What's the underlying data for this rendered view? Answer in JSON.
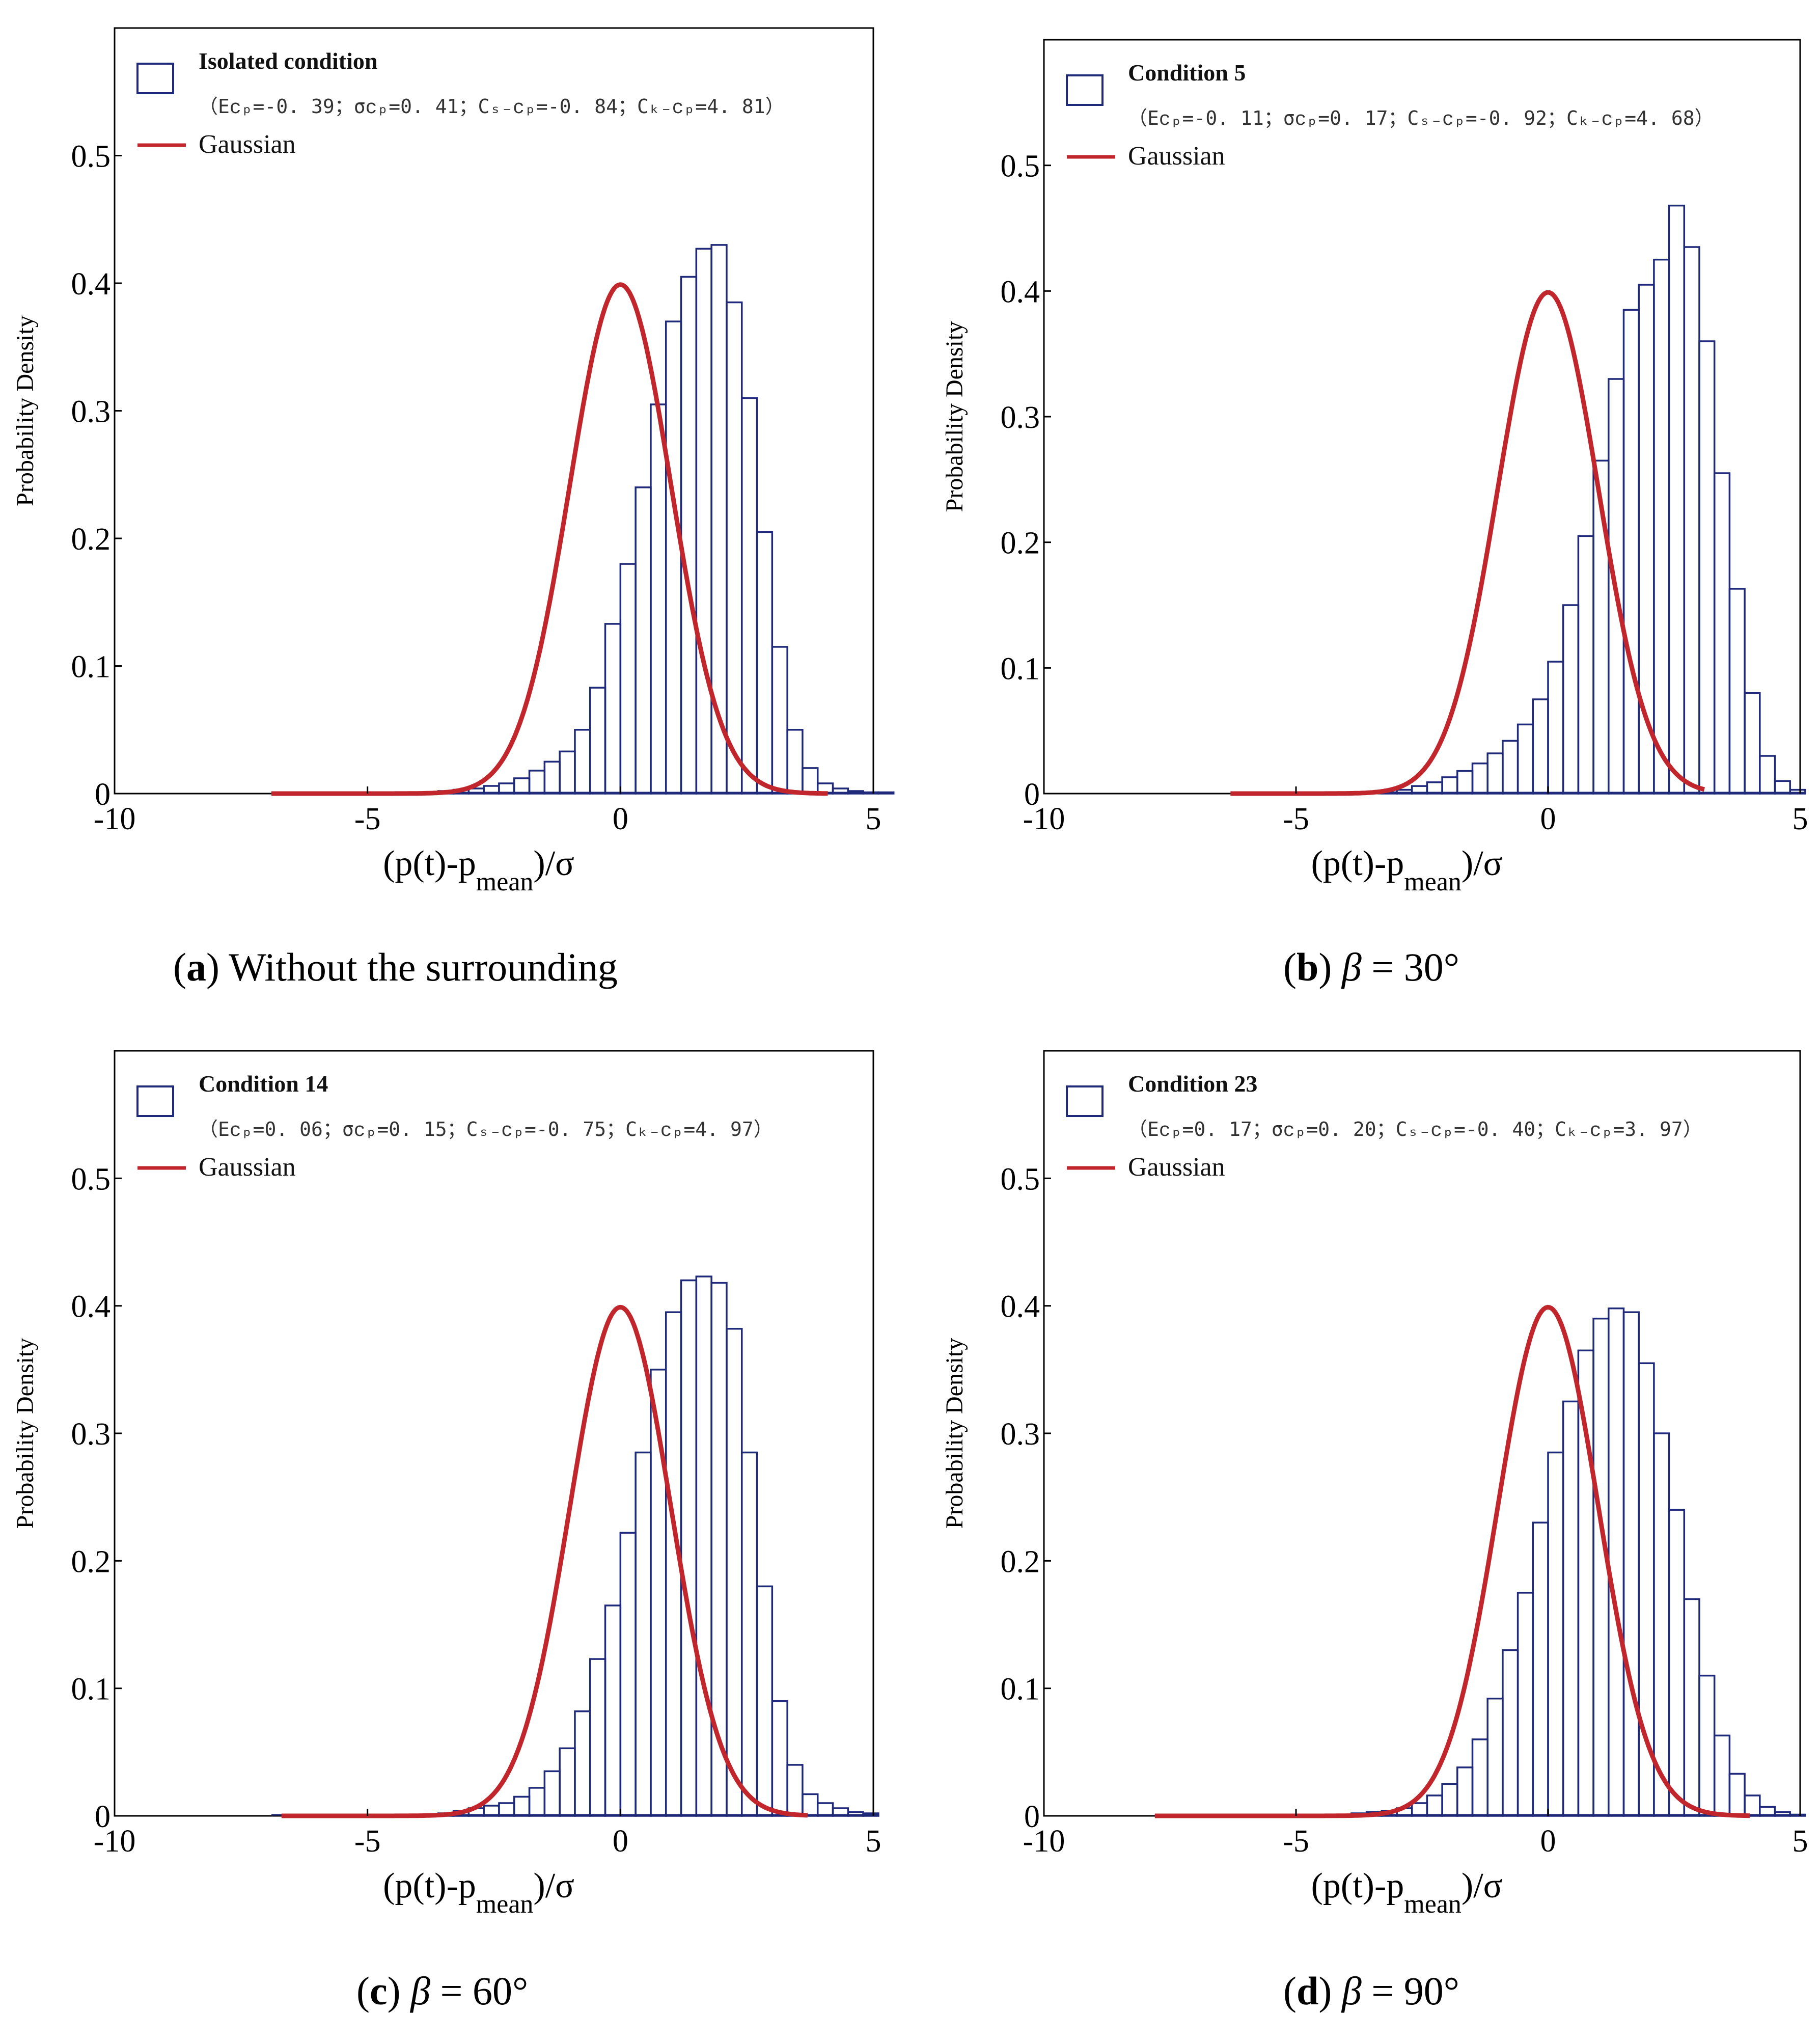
{
  "colors": {
    "bar": "#1f2a7a",
    "gaussian": "#c0262b",
    "axis": "#000000"
  },
  "chart_data": [
    {
      "type": "bar",
      "caption_label": "a",
      "caption_text": "Without the surrounding",
      "legend_title": "Isolated condition",
      "legend_stats": "（Eᴄₚ=-0. 39；σᴄₚ=0. 41；Cₛ₋ᴄₚ=-0. 84；Cₖ₋ᴄₚ=4. 81）",
      "gaussian_label": "Gaussian",
      "ylabel": "Probability Density",
      "xlabel_main": "(p(t)-p",
      "xlabel_sub": "mean",
      "xlabel_end": ")/σ",
      "xlim": [
        -10,
        5
      ],
      "ylim": [
        0,
        0.6
      ],
      "xticks": [
        "-10",
        "-5",
        "0",
        "5"
      ],
      "yticks": [
        "0",
        "0.1",
        "0.2",
        "0.3",
        "0.4",
        "0.5"
      ],
      "bin_width": 0.3,
      "bins_start": -6.9,
      "values": [
        0,
        0,
        0,
        0,
        0,
        0,
        0,
        0,
        0,
        0,
        0.001,
        0.002,
        0.003,
        0.004,
        0.006,
        0.008,
        0.012,
        0.018,
        0.025,
        0.033,
        0.05,
        0.083,
        0.133,
        0.18,
        0.24,
        0.305,
        0.37,
        0.405,
        0.427,
        0.43,
        0.385,
        0.31,
        0.205,
        0.115,
        0.05,
        0.02,
        0.008,
        0.004,
        0.002,
        0.001,
        0.001
      ],
      "gaussian_range": [
        -6.9,
        4.1
      ]
    },
    {
      "type": "bar",
      "caption_label": "b",
      "caption_text": " = 30°",
      "caption_symbol": "β",
      "legend_title": "Condition 5",
      "legend_stats": "（Eᴄₚ=-0. 11；σᴄₚ=0. 17；Cₛ₋ᴄₚ=-0. 92；Cₖ₋ᴄₚ=4. 68）",
      "gaussian_label": "Gaussian",
      "ylabel": "Probability Density",
      "xlabel_main": "(p(t)-p",
      "xlabel_sub": "mean",
      "xlabel_end": ")/σ",
      "xlim": [
        -10,
        5
      ],
      "ylim": [
        0,
        0.6
      ],
      "xticks": [
        "-10",
        "-5",
        "0",
        "5"
      ],
      "yticks": [
        "0",
        "0.1",
        "0.2",
        "0.3",
        "0.4",
        "0.5"
      ],
      "bin_width": 0.3,
      "bins_start": -6.0,
      "values": [
        0,
        0,
        0,
        0,
        0,
        0,
        0,
        0,
        0,
        0.001,
        0.003,
        0.006,
        0.009,
        0.013,
        0.018,
        0.024,
        0.032,
        0.042,
        0.055,
        0.075,
        0.105,
        0.15,
        0.205,
        0.265,
        0.33,
        0.385,
        0.405,
        0.425,
        0.468,
        0.435,
        0.36,
        0.255,
        0.163,
        0.08,
        0.03,
        0.01,
        0.003
      ],
      "gaussian_range": [
        -6.3,
        3.1
      ]
    },
    {
      "type": "bar",
      "caption_label": "c",
      "caption_text": " = 60°",
      "caption_symbol": "β",
      "legend_title": "Condition 14",
      "legend_stats": "（Eᴄₚ=0. 06；σᴄₚ=0. 15；Cₛ₋ᴄₚ=-0. 75；Cₖ₋ᴄₚ=4. 97）",
      "gaussian_label": "Gaussian",
      "ylabel": "Probability Density",
      "xlabel_main": "(p(t)-p",
      "xlabel_sub": "mean",
      "xlabel_end": ")/σ",
      "xlim": [
        -10,
        5
      ],
      "ylim": [
        0,
        0.6
      ],
      "xticks": [
        "-10",
        "-5",
        "0",
        "5"
      ],
      "yticks": [
        "0",
        "0.1",
        "0.2",
        "0.3",
        "0.4",
        "0.5"
      ],
      "bin_width": 0.3,
      "bins_start": -6.9,
      "values": [
        0,
        0,
        0,
        0,
        0,
        0,
        0,
        0,
        0,
        0,
        0.001,
        0.002,
        0.004,
        0.006,
        0.008,
        0.01,
        0.015,
        0.022,
        0.035,
        0.053,
        0.082,
        0.123,
        0.165,
        0.222,
        0.285,
        0.35,
        0.395,
        0.42,
        0.423,
        0.418,
        0.382,
        0.285,
        0.18,
        0.09,
        0.04,
        0.017,
        0.01,
        0.006,
        0.003,
        0.002
      ],
      "gaussian_range": [
        -6.7,
        3.7
      ]
    },
    {
      "type": "bar",
      "caption_label": "d",
      "caption_text": " = 90°",
      "caption_symbol": "β",
      "legend_title": "Condition 23",
      "legend_stats": "（Eᴄₚ=0. 17；σᴄₚ=0. 20；Cₛ₋ᴄₚ=-0. 40；Cₖ₋ᴄₚ=3. 97）",
      "gaussian_label": "Gaussian",
      "ylabel": "Probability Density",
      "xlabel_main": "(p(t)-p",
      "xlabel_sub": "mean",
      "xlabel_end": ")/σ",
      "xlim": [
        -10,
        5
      ],
      "ylim": [
        0,
        0.6
      ],
      "xticks": [
        "-10",
        "-5",
        "0",
        "5"
      ],
      "yticks": [
        "0",
        "0.1",
        "0.2",
        "0.3",
        "0.4",
        "0.5"
      ],
      "bin_width": 0.3,
      "bins_start": -7.8,
      "values": [
        0,
        0,
        0,
        0,
        0,
        0,
        0,
        0,
        0,
        0,
        0,
        0,
        0.001,
        0.002,
        0.003,
        0.004,
        0.006,
        0.01,
        0.016,
        0.025,
        0.038,
        0.06,
        0.092,
        0.13,
        0.175,
        0.23,
        0.285,
        0.325,
        0.365,
        0.39,
        0.398,
        0.395,
        0.355,
        0.3,
        0.24,
        0.17,
        0.11,
        0.063,
        0.033,
        0.016,
        0.007,
        0.003,
        0.001
      ],
      "gaussian_range": [
        -7.8,
        4.0
      ]
    }
  ]
}
